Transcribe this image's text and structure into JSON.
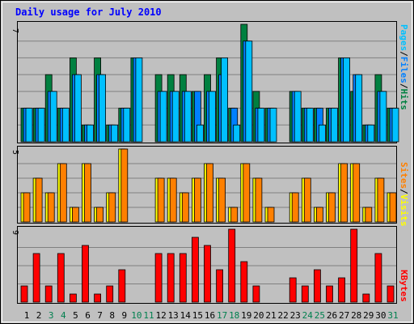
{
  "chart_data": {
    "type": "bar",
    "title": "Daily usage for July 2010",
    "days": [
      "1",
      "2",
      "3",
      "4",
      "5",
      "6",
      "7",
      "8",
      "9",
      "10",
      "11",
      "12",
      "13",
      "14",
      "15",
      "16",
      "17",
      "18",
      "19",
      "20",
      "21",
      "22",
      "23",
      "24",
      "25",
      "26",
      "27",
      "28",
      "29",
      "30",
      "31"
    ],
    "weekend_days": [
      "3",
      "4",
      "10",
      "11",
      "17",
      "18",
      "24",
      "25",
      "31"
    ],
    "grid": true,
    "panels": [
      {
        "name": "hits-files-pages",
        "ymax_label": "7",
        "ymax": 7,
        "series": [
          {
            "name": "Hits",
            "color": "#008040",
            "values": [
              2,
              2,
              4,
              2,
              5,
              1,
              5,
              1,
              2,
              5,
              0,
              4,
              4,
              4,
              3,
              4,
              5,
              2,
              7,
              3,
              2,
              0,
              3,
              2,
              2,
              2,
              5,
              3,
              1,
              4,
              2
            ]
          },
          {
            "name": "Files",
            "color": "#0080ff",
            "values": [
              2,
              2,
              3,
              2,
              4,
              1,
              4,
              1,
              2,
              5,
              0,
              3,
              3,
              3,
              3,
              3,
              4,
              2,
              6,
              2,
              2,
              0,
              3,
              2,
              2,
              2,
              5,
              4,
              1,
              3,
              2
            ]
          },
          {
            "name": "Pages",
            "color": "#00c0ff",
            "values": [
              2,
              2,
              3,
              2,
              4,
              1,
              4,
              1,
              2,
              5,
              0,
              3,
              3,
              3,
              1,
              3,
              5,
              1,
              6,
              2,
              2,
              0,
              3,
              2,
              1,
              2,
              5,
              4,
              1,
              3,
              2
            ]
          }
        ]
      },
      {
        "name": "visits-sites",
        "ymax_label": "5",
        "ymax": 5,
        "series": [
          {
            "name": "Visits",
            "color": "#ffff00",
            "values": [
              2,
              3,
              2,
              4,
              1,
              4,
              1,
              2,
              5,
              0,
              0,
              3,
              3,
              2,
              3,
              4,
              3,
              1,
              4,
              3,
              1,
              0,
              2,
              3,
              1,
              2,
              4,
              4,
              1,
              3,
              2
            ]
          },
          {
            "name": "Sites",
            "color": "#ff8000",
            "values": [
              2,
              3,
              2,
              4,
              1,
              4,
              1,
              2,
              5,
              0,
              0,
              3,
              3,
              2,
              3,
              4,
              3,
              1,
              4,
              3,
              1,
              0,
              2,
              3,
              1,
              2,
              4,
              4,
              1,
              3,
              2
            ]
          }
        ]
      },
      {
        "name": "kbytes",
        "ymax_label": "9",
        "ymax": 9,
        "series": [
          {
            "name": "KBytes",
            "color": "#ff0000",
            "values": [
              2,
              6,
              2,
              6,
              1,
              7,
              1,
              2,
              4,
              0,
              0,
              6,
              6,
              6,
              8,
              7,
              4,
              9,
              5,
              2,
              0,
              0,
              3,
              2,
              4,
              2,
              3,
              9,
              1,
              6,
              2
            ]
          }
        ]
      }
    ]
  },
  "colors": {
    "background": "#c0c0c0",
    "plot_background": "#c0c0c0",
    "title_color": "#0000ff",
    "weekday_label": "#000000",
    "weekend_label": "#00804f",
    "grid": "#808080"
  }
}
